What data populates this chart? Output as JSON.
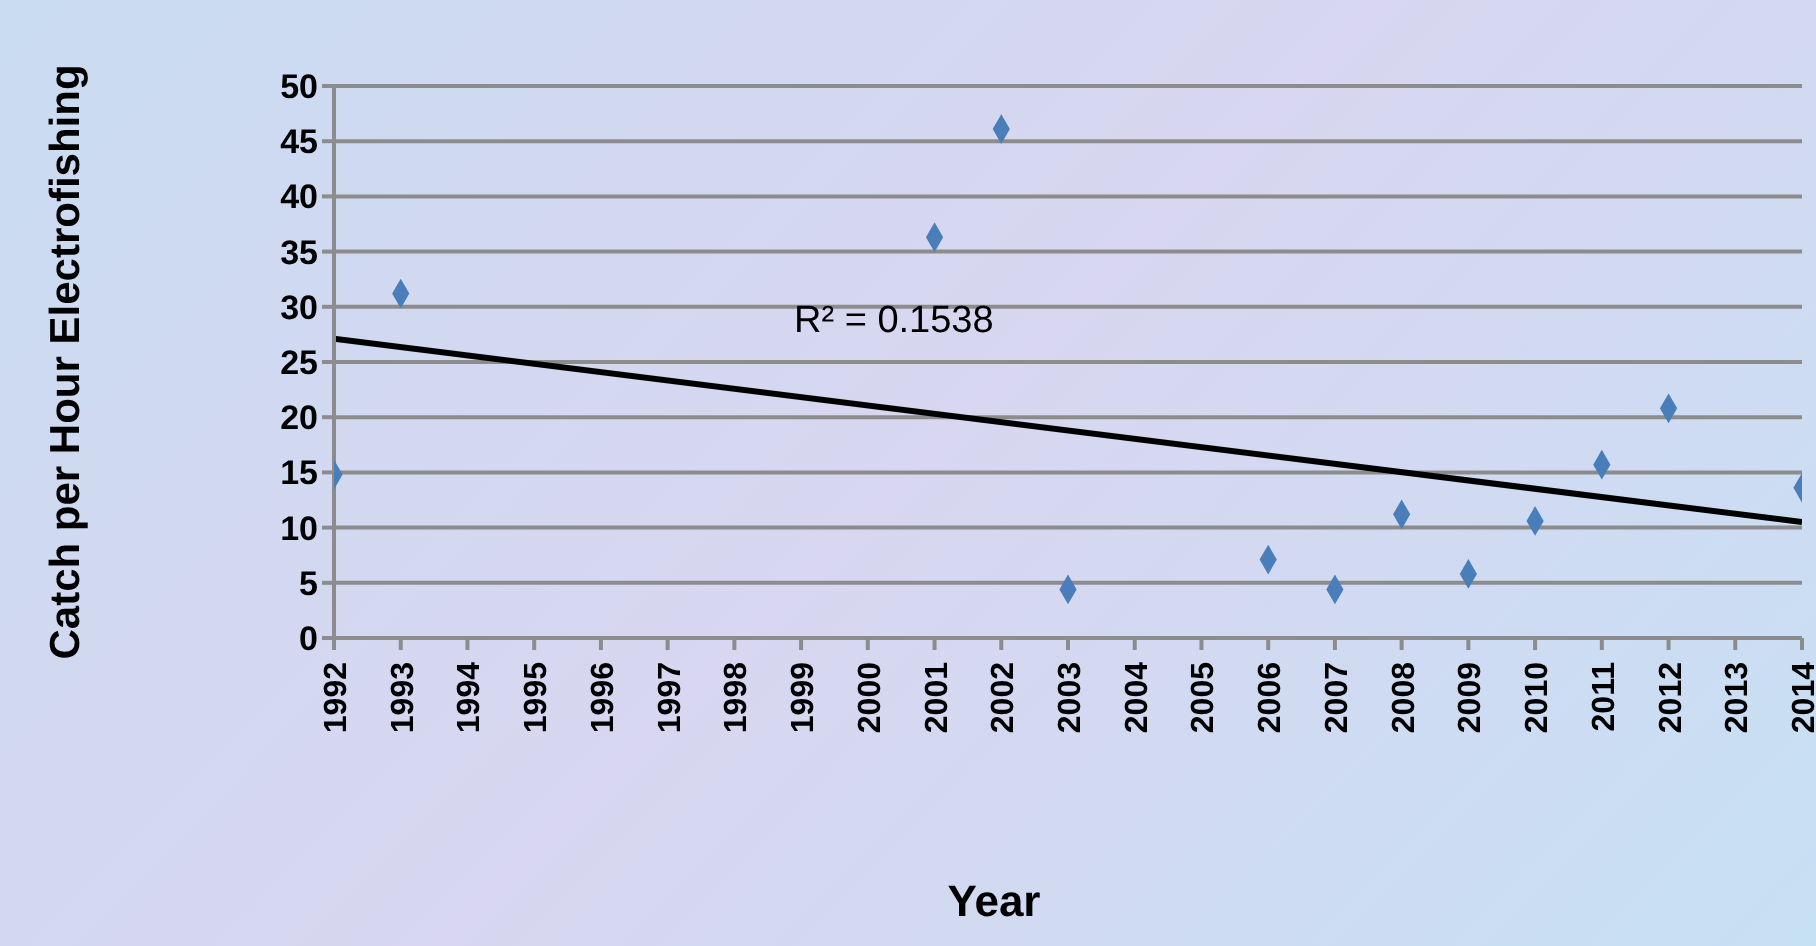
{
  "chart_data": {
    "type": "scatter",
    "xlabel": "Year",
    "ylabel": "Catch per Hour Electrofishing",
    "annotations": [
      "R² = 0.1538"
    ],
    "xlim": [
      1992,
      2014
    ],
    "xticks": [
      1992,
      1993,
      1994,
      1995,
      1996,
      1997,
      1998,
      1999,
      2000,
      2001,
      2002,
      2003,
      2004,
      2005,
      2006,
      2007,
      2008,
      2009,
      2010,
      2011,
      2012,
      2013,
      2014
    ],
    "ylim": [
      0,
      50
    ],
    "yticks": [
      0,
      5,
      10,
      15,
      20,
      25,
      30,
      35,
      40,
      45,
      50
    ],
    "grid": "y",
    "marker": "diamond",
    "series": [
      {
        "color": "#4a7ebb",
        "x": [
          1992,
          1993,
          2001,
          2002,
          2003,
          2006,
          2007,
          2008,
          2009,
          2010,
          2011,
          2012,
          2014
        ],
        "values": [
          14.8,
          31.2,
          36.3,
          46.1,
          4.4,
          7.1,
          4.4,
          11.2,
          5.8,
          10.6,
          15.7,
          20.8,
          13.6
        ]
      },
      {
        "type": "line",
        "color": "#000000",
        "x": [
          1992,
          2014
        ],
        "values": [
          27.1,
          10.5
        ],
        "marker": "none",
        "line_style": "solid"
      }
    ]
  }
}
